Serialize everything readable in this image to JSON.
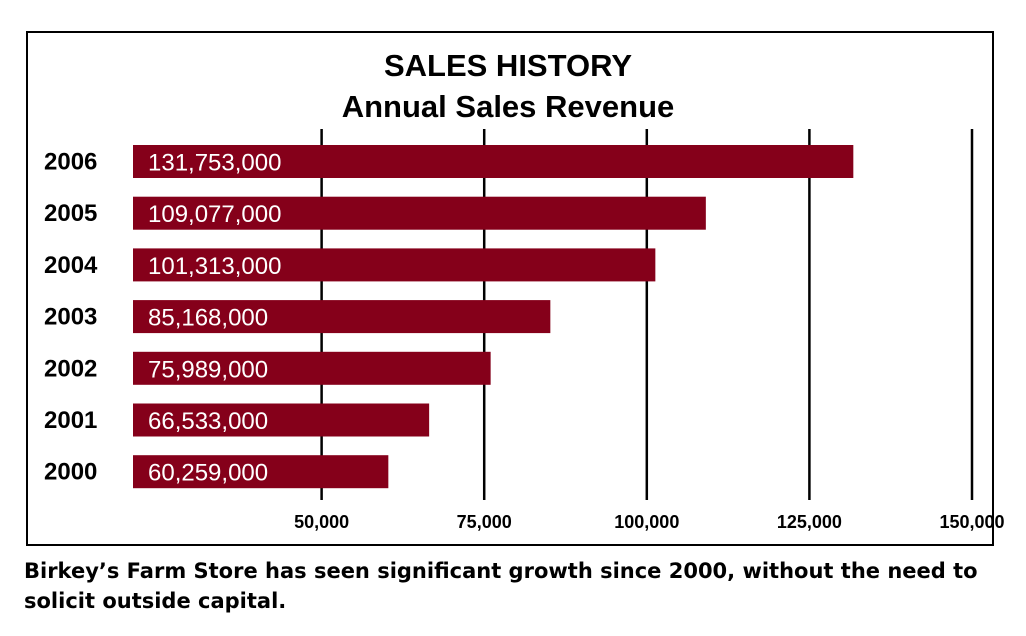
{
  "chart_data": {
    "type": "bar",
    "orientation": "horizontal",
    "title": "SALES HISTORY",
    "subtitle": "Annual Sales Revenue",
    "categories": [
      "2006",
      "2005",
      "2004",
      "2003",
      "2002",
      "2001",
      "2000"
    ],
    "values": [
      131753000,
      109077000,
      101313000,
      85168000,
      75989000,
      66533000,
      60259000
    ],
    "data_labels": [
      "131,753,000",
      "109,077,000",
      "101,313,000",
      "85,168,000",
      "75,989,000",
      "66,533,000",
      "60,259,000"
    ],
    "xlabel": "",
    "ylabel": "",
    "xticks": [
      50000000,
      75000000,
      100000000,
      125000000,
      150000000
    ],
    "xtick_labels": [
      "50,000",
      "75,000",
      "100,000",
      "125,000",
      "150,000"
    ],
    "xlim": [
      21000000,
      150000000
    ],
    "grid": "vertical",
    "bar_color": "#85001a",
    "grid_color": "#000000"
  },
  "caption": "Birkey’s Farm Store has seen significant growth since 2000, without the need to solicit outside capital."
}
